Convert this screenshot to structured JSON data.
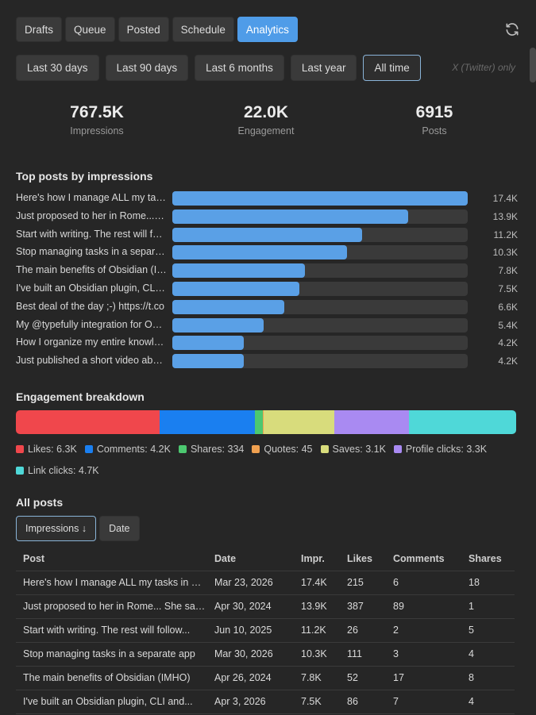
{
  "tabs": [
    "Drafts",
    "Queue",
    "Posted",
    "Schedule",
    "Analytics"
  ],
  "active_tab": "Analytics",
  "ranges": [
    "Last 30 days",
    "Last 90 days",
    "Last 6 months",
    "Last year",
    "All time"
  ],
  "active_range": "All time",
  "platform_note": "X (Twitter) only",
  "stats": [
    {
      "value": "767.5K",
      "label": "Impressions"
    },
    {
      "value": "22.0K",
      "label": "Engagement"
    },
    {
      "value": "6915",
      "label": "Posts"
    }
  ],
  "top_posts_title": "Top posts by impressions",
  "chart_data": {
    "type": "bar",
    "title": "Top posts by impressions",
    "categories": [
      "Here's how I manage ALL my tasks in...",
      "Just proposed to her in Rome... She said yes",
      "Start with writing. The rest will follow...",
      "Stop managing tasks in a separate app",
      "The main benefits of Obsidian (IMHO)",
      "I've built an Obsidian plugin, CLI and...",
      "Best deal of the day ;-) https://t.co",
      "My @typefully integration for Obsidian",
      "How I organize my entire knowledge base",
      "Just published a short video about..."
    ],
    "values": [
      17400,
      13900,
      11200,
      10300,
      7800,
      7500,
      6600,
      5400,
      4200,
      4200
    ],
    "value_labels": [
      "17.4K",
      "13.9K",
      "11.2K",
      "10.3K",
      "7.8K",
      "7.5K",
      "6.6K",
      "5.4K",
      "4.2K",
      "4.2K"
    ],
    "bar_color": "#5aa0e6"
  },
  "engagement_title": "Engagement breakdown",
  "engagement": [
    {
      "label": "Likes: 6.3K",
      "value": 6300,
      "color": "#f0474c"
    },
    {
      "label": "Comments: 4.2K",
      "value": 4200,
      "color": "#1a7ff0"
    },
    {
      "label": "Shares: 334",
      "value": 334,
      "color": "#4cc870"
    },
    {
      "label": "Quotes: 45",
      "value": 45,
      "color": "#f0a050"
    },
    {
      "label": "Saves: 3.1K",
      "value": 3100,
      "color": "#d8dc7c"
    },
    {
      "label": "Profile clicks: 3.3K",
      "value": 3300,
      "color": "#a98af2"
    },
    {
      "label": "Link clicks: 4.7K",
      "value": 4700,
      "color": "#4fd8d8"
    }
  ],
  "all_posts_title": "All posts",
  "sort_buttons": [
    "Impressions ↓",
    "Date"
  ],
  "active_sort": "Impressions ↓",
  "table": {
    "columns": [
      "Post",
      "Date",
      "Impr.",
      "Likes",
      "Comments",
      "Shares"
    ],
    "rows": [
      [
        "Here's how I manage ALL my tasks in Obsidian",
        "Mar 23, 2026",
        "17.4K",
        "215",
        "6",
        "18"
      ],
      [
        "Just proposed to her in Rome... She said yes",
        "Apr 30, 2024",
        "13.9K",
        "387",
        "89",
        "1"
      ],
      [
        "Start with writing. The rest will follow...",
        "Jun 10, 2025",
        "11.2K",
        "26",
        "2",
        "5"
      ],
      [
        "Stop managing tasks in a separate app",
        "Mar 30, 2026",
        "10.3K",
        "111",
        "3",
        "4"
      ],
      [
        "The main benefits of Obsidian (IMHO)",
        "Apr 26, 2024",
        "7.8K",
        "52",
        "17",
        "8"
      ],
      [
        "I've built an Obsidian plugin, CLI and...",
        "Apr 3, 2026",
        "7.5K",
        "86",
        "7",
        "4"
      ]
    ]
  }
}
